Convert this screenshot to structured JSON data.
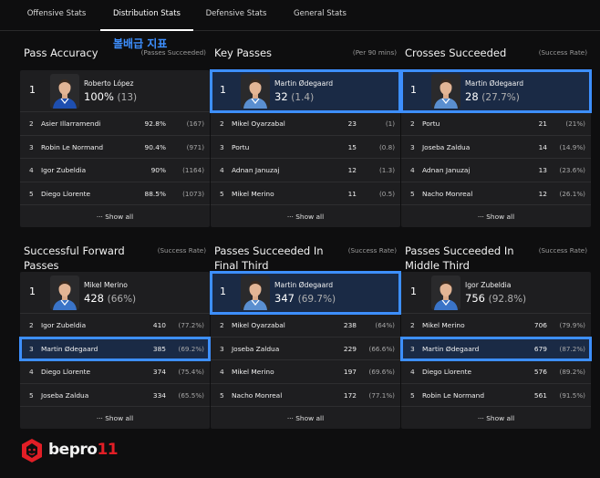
{
  "tabs": [
    {
      "label": "Offensive Stats",
      "active": false
    },
    {
      "label": "Distribution Stats",
      "active": true
    },
    {
      "label": "Defensive Stats",
      "active": false
    },
    {
      "label": "General Stats",
      "active": false
    }
  ],
  "overlay_text": "볼배급 지표",
  "show_all_label": "Show all",
  "cards": [
    {
      "title": "Pass Accuracy",
      "sub": "(Passes Succeeded)",
      "top": {
        "rank": "1",
        "name": "Roberto López",
        "value": "100%",
        "paren": "(13)",
        "highlight": false,
        "jersey": "#1e4fb0"
      },
      "rows": [
        {
          "rank": "2",
          "name": "Asier Illarramendi",
          "value": "92.8%",
          "sub": "(167)",
          "highlight": false
        },
        {
          "rank": "3",
          "name": "Robin Le Normand",
          "value": "90.4%",
          "sub": "(971)",
          "highlight": false
        },
        {
          "rank": "4",
          "name": "Igor Zubeldia",
          "value": "90%",
          "sub": "(1164)",
          "highlight": false
        },
        {
          "rank": "5",
          "name": "Diego Llorente",
          "value": "88.5%",
          "sub": "(1073)",
          "highlight": false
        }
      ]
    },
    {
      "title": "Key Passes",
      "sub": "(Per 90 mins)",
      "top": {
        "rank": "1",
        "name": "Martin Ødegaard",
        "value": "32",
        "paren": "(1.4)",
        "highlight": true,
        "jersey": "#5a8fd0"
      },
      "rows": [
        {
          "rank": "2",
          "name": "Mikel Oyarzabal",
          "value": "23",
          "sub": "(1)",
          "highlight": false
        },
        {
          "rank": "3",
          "name": "Portu",
          "value": "15",
          "sub": "(0.8)",
          "highlight": false
        },
        {
          "rank": "4",
          "name": "Adnan Januzaj",
          "value": "12",
          "sub": "(1.3)",
          "highlight": false
        },
        {
          "rank": "5",
          "name": "Mikel Merino",
          "value": "11",
          "sub": "(0.5)",
          "highlight": false
        }
      ]
    },
    {
      "title": "Crosses Succeeded",
      "sub": "(Success Rate)",
      "top": {
        "rank": "1",
        "name": "Martin Ødegaard",
        "value": "28",
        "paren": "(27.7%)",
        "highlight": true,
        "jersey": "#5a8fd0"
      },
      "rows": [
        {
          "rank": "2",
          "name": "Portu",
          "value": "21",
          "sub": "(21%)",
          "highlight": false
        },
        {
          "rank": "3",
          "name": "Joseba Zaldua",
          "value": "14",
          "sub": "(14.9%)",
          "highlight": false
        },
        {
          "rank": "4",
          "name": "Adnan Januzaj",
          "value": "13",
          "sub": "(23.6%)",
          "highlight": false
        },
        {
          "rank": "5",
          "name": "Nacho Monreal",
          "value": "12",
          "sub": "(26.1%)",
          "highlight": false
        }
      ]
    },
    {
      "title": "Successful Forward Passes",
      "sub": "(Success Rate)",
      "top": {
        "rank": "1",
        "name": "Mikel Merino",
        "value": "428",
        "paren": "(66%)",
        "highlight": false,
        "jersey": "#3a74c8"
      },
      "rows": [
        {
          "rank": "2",
          "name": "Igor Zubeldia",
          "value": "410",
          "sub": "(77.2%)",
          "highlight": false
        },
        {
          "rank": "3",
          "name": "Martin Ødegaard",
          "value": "385",
          "sub": "(69.2%)",
          "highlight": true
        },
        {
          "rank": "4",
          "name": "Diego Llorente",
          "value": "374",
          "sub": "(75.4%)",
          "highlight": false
        },
        {
          "rank": "5",
          "name": "Joseba Zaldua",
          "value": "334",
          "sub": "(65.5%)",
          "highlight": false
        }
      ]
    },
    {
      "title": "Passes Succeeded In Final Third",
      "sub": "(Success Rate)",
      "top": {
        "rank": "1",
        "name": "Martin Ødegaard",
        "value": "347",
        "paren": "(69.7%)",
        "highlight": true,
        "jersey": "#5a8fd0"
      },
      "rows": [
        {
          "rank": "2",
          "name": "Mikel Oyarzabal",
          "value": "238",
          "sub": "(64%)",
          "highlight": false
        },
        {
          "rank": "3",
          "name": "Joseba Zaldua",
          "value": "229",
          "sub": "(66.6%)",
          "highlight": false
        },
        {
          "rank": "4",
          "name": "Mikel Merino",
          "value": "197",
          "sub": "(69.6%)",
          "highlight": false
        },
        {
          "rank": "5",
          "name": "Nacho Monreal",
          "value": "172",
          "sub": "(77.1%)",
          "highlight": false
        }
      ]
    },
    {
      "title": "Passes Succeeded In Middle Third",
      "sub": "(Success Rate)",
      "top": {
        "rank": "1",
        "name": "Igor Zubeldia",
        "value": "756",
        "paren": "(92.8%)",
        "highlight": false,
        "jersey": "#3a74c8"
      },
      "rows": [
        {
          "rank": "2",
          "name": "Mikel Merino",
          "value": "706",
          "sub": "(79.9%)",
          "highlight": false
        },
        {
          "rank": "3",
          "name": "Martin Ødegaard",
          "value": "679",
          "sub": "(87.2%)",
          "highlight": true
        },
        {
          "rank": "4",
          "name": "Diego Llorente",
          "value": "576",
          "sub": "(89.2%)",
          "highlight": false
        },
        {
          "rank": "5",
          "name": "Robin Le Normand",
          "value": "561",
          "sub": "(91.5%)",
          "highlight": false
        }
      ]
    }
  ],
  "logo": {
    "text": "bepro",
    "accent": "11",
    "icon": "lion-head-icon",
    "accent_color": "#e21e26"
  }
}
